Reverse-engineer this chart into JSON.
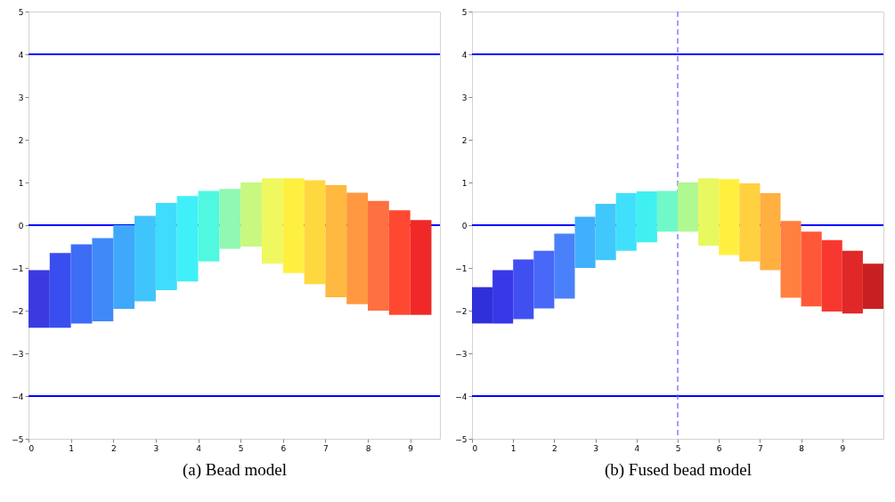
{
  "chart_data": [
    {
      "type": "bar",
      "xlabel": "(a) Bead model",
      "x": [
        0.25,
        0.75,
        1.25,
        1.75,
        2.25,
        2.75,
        3.25,
        3.75,
        4.25,
        4.75,
        5.25,
        5.75,
        6.25,
        6.75,
        7.25,
        7.75,
        8.25,
        8.75,
        9.25
      ],
      "values": [
        1.35,
        1.75,
        1.85,
        1.95,
        1.96,
        2.0,
        2.04,
        2.0,
        1.65,
        1.4,
        1.5,
        2.0,
        2.22,
        2.43,
        2.63,
        2.61,
        2.57,
        2.45,
        2.22
      ],
      "base": [
        -2.4,
        -2.4,
        -2.3,
        -2.25,
        -1.96,
        -1.78,
        -1.52,
        -1.32,
        -0.85,
        -0.55,
        -0.5,
        -0.9,
        -1.12,
        -1.38,
        -1.69,
        -1.85,
        -2.0,
        -2.1,
        -2.1
      ],
      "colors": [
        "#3a3ae0",
        "#3a4ef0",
        "#3d6cf5",
        "#3f8af8",
        "#40a8fa",
        "#40c4fc",
        "#40dcfc",
        "#40f0f8",
        "#50f8e0",
        "#90f8b0",
        "#c8f880",
        "#f0f860",
        "#fff040",
        "#ffd840",
        "#ffb840",
        "#ff9840",
        "#ff7040",
        "#ff4830",
        "#f02828"
      ],
      "xlim": [
        0,
        9.7
      ],
      "xticks": [
        0,
        1,
        2,
        3,
        4,
        5,
        6,
        7,
        8,
        9
      ],
      "ylim": [
        -5,
        5
      ],
      "yticks": [
        -5,
        -4,
        -3,
        -2,
        -1,
        0,
        1,
        2,
        3,
        4,
        5
      ],
      "ref_lines": [
        {
          "axis": "y",
          "value": 4,
          "color": "#0000ff"
        },
        {
          "axis": "y",
          "value": -4,
          "color": "#0000ff"
        },
        {
          "axis": "y",
          "value": 0,
          "color": "#0000ff"
        }
      ]
    },
    {
      "type": "bar",
      "xlabel": "(b) Fused bead model",
      "x": [
        0.25,
        0.75,
        1.25,
        1.75,
        2.25,
        2.75,
        3.25,
        3.75,
        4.25,
        4.75,
        5.25,
        5.75,
        6.25,
        6.75,
        7.25,
        7.75,
        8.25,
        8.75,
        9.25,
        9.75
      ],
      "values": [
        0.85,
        1.25,
        1.4,
        1.35,
        1.52,
        1.2,
        1.32,
        1.35,
        1.19,
        0.95,
        1.15,
        1.58,
        1.78,
        1.83,
        1.8,
        1.8,
        1.75,
        1.67,
        1.47,
        1.06
      ],
      "base": [
        -2.3,
        -2.3,
        -2.2,
        -1.95,
        -1.72,
        -1.0,
        -0.82,
        -0.6,
        -0.4,
        -0.15,
        -0.15,
        -0.48,
        -0.7,
        -0.85,
        -1.05,
        -1.7,
        -1.9,
        -2.02,
        -2.07,
        -1.96
      ],
      "colors": [
        "#3030d8",
        "#3838e8",
        "#4050f0",
        "#4868f8",
        "#4a80fa",
        "#40b0fc",
        "#40c8fc",
        "#40e0fc",
        "#40f0f0",
        "#70f8c8",
        "#b0f890",
        "#e8f860",
        "#fff040",
        "#ffd040",
        "#ffb040",
        "#ff8040",
        "#ff5838",
        "#f83830",
        "#e02828",
        "#c82020"
      ],
      "xlim": [
        0,
        10
      ],
      "xticks": [
        0,
        1,
        2,
        3,
        4,
        5,
        6,
        7,
        8,
        9
      ],
      "ylim": [
        -5,
        5
      ],
      "yticks": [
        -5,
        -4,
        -3,
        -2,
        -1,
        0,
        1,
        2,
        3,
        4,
        5
      ],
      "ref_lines": [
        {
          "axis": "y",
          "value": 4,
          "color": "#0000ff"
        },
        {
          "axis": "y",
          "value": -4,
          "color": "#0000ff"
        },
        {
          "axis": "y",
          "value": 0,
          "color": "#0000ff"
        },
        {
          "axis": "x",
          "value": 5,
          "color": "#6060ff",
          "line_style": "dashed"
        }
      ]
    }
  ]
}
